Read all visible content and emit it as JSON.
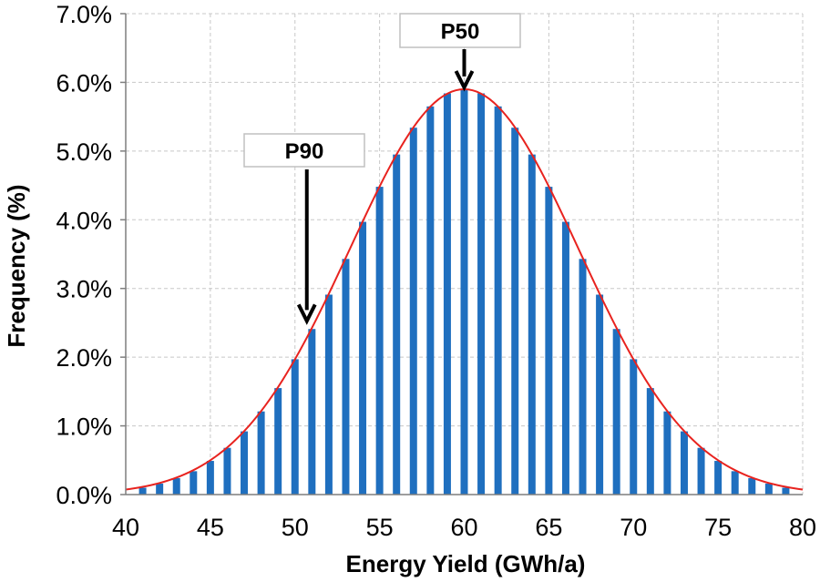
{
  "chart_data": {
    "type": "bar",
    "xlabel": "Energy Yield (GWh/a)",
    "ylabel": "Frequency (%)",
    "xlim": [
      40,
      80
    ],
    "ylim": [
      0,
      7
    ],
    "x_ticks": [
      "40",
      "45",
      "50",
      "55",
      "60",
      "65",
      "70",
      "75",
      "80"
    ],
    "y_ticks": [
      "0.0%",
      "1.0%",
      "2.0%",
      "3.0%",
      "4.0%",
      "5.0%",
      "6.0%",
      "7.0%"
    ],
    "grid": true,
    "legend": "none",
    "bar_color": "#1f6fbf",
    "curve_color": "#e8231f",
    "series": [
      {
        "type": "bar",
        "x": [
          41,
          42,
          43,
          44,
          45,
          46,
          47,
          48,
          49,
          50,
          51,
          52,
          53,
          54,
          55,
          56,
          57,
          58,
          59,
          60,
          61,
          62,
          63,
          64,
          65,
          66,
          67,
          68,
          69,
          70,
          71,
          72,
          73,
          74,
          75,
          76,
          77,
          78,
          79
        ],
        "values": [
          0.1,
          0.16,
          0.24,
          0.34,
          0.49,
          0.68,
          0.92,
          1.21,
          1.55,
          1.97,
          2.41,
          2.91,
          3.43,
          3.97,
          4.48,
          4.95,
          5.34,
          5.65,
          5.84,
          5.9,
          5.84,
          5.65,
          5.34,
          4.95,
          4.48,
          3.97,
          3.43,
          2.91,
          2.41,
          1.97,
          1.55,
          1.21,
          0.92,
          0.68,
          0.49,
          0.34,
          0.24,
          0.16,
          0.1
        ]
      },
      {
        "type": "line",
        "mean": 60,
        "std_dev": 6.75,
        "peak": 5.9
      }
    ],
    "annotations": [
      {
        "label": "P50",
        "x": 60,
        "y": 5.9
      },
      {
        "label": "P90",
        "x": 50.7,
        "y": 2.5
      }
    ]
  }
}
